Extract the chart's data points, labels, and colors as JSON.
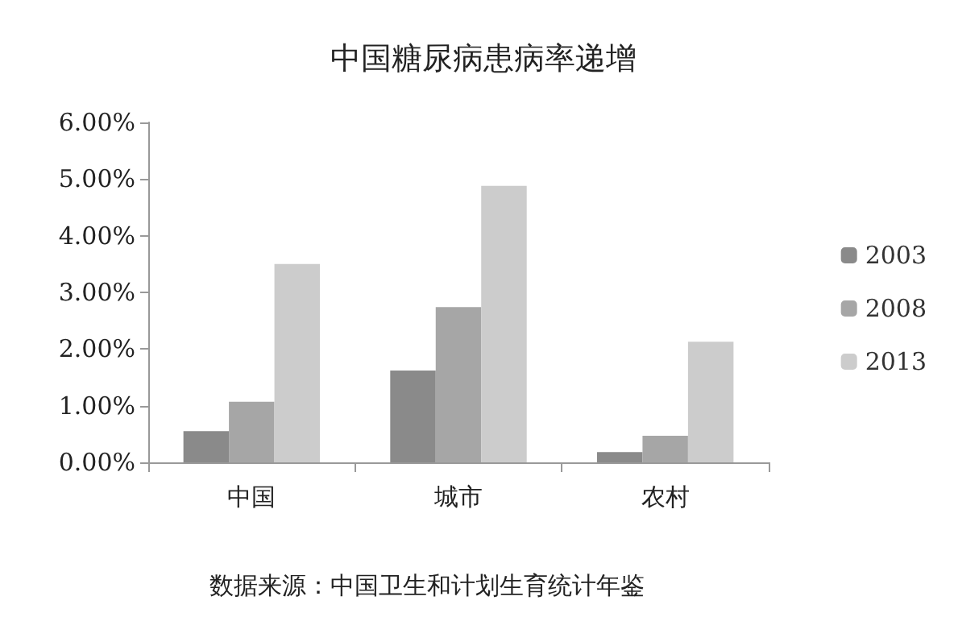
{
  "chart_data": {
    "type": "bar",
    "title": "中国糖尿病患病率递增",
    "categories": [
      "中国",
      "城市",
      "农村"
    ],
    "series": [
      {
        "name": "2003",
        "color": "#8a8a8a",
        "values": [
          0.55,
          1.62,
          0.18
        ]
      },
      {
        "name": "2008",
        "color": "#a6a6a6",
        "values": [
          1.07,
          2.74,
          0.47
        ]
      },
      {
        "name": "2013",
        "color": "#cccccc",
        "values": [
          3.5,
          4.88,
          2.13
        ]
      }
    ],
    "ylim": [
      0,
      6
    ],
    "yticks": [
      {
        "value": 0,
        "label": "0.00%"
      },
      {
        "value": 1,
        "label": "1.00%"
      },
      {
        "value": 2,
        "label": "2.00%"
      },
      {
        "value": 3,
        "label": "3.00%"
      },
      {
        "value": 4,
        "label": "4.00%"
      },
      {
        "value": 5,
        "label": "5.00%"
      },
      {
        "value": 6,
        "label": "6.00%"
      }
    ],
    "grid": false,
    "legend": "right",
    "annotations": [
      "数据来源：中国卫生和计划生育统计年鉴"
    ]
  }
}
